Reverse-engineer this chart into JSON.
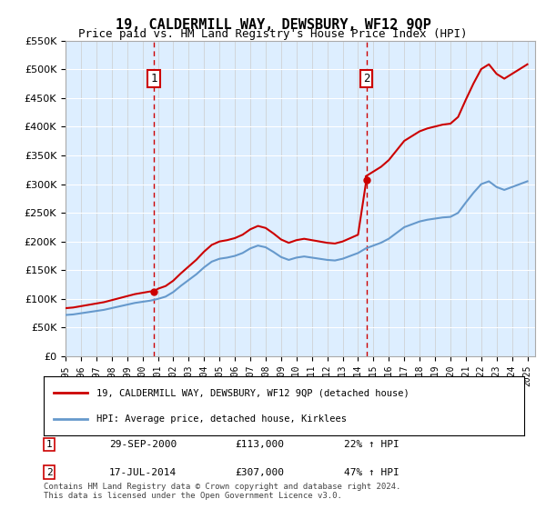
{
  "title": "19, CALDERMILL WAY, DEWSBURY, WF12 9QP",
  "subtitle": "Price paid vs. HM Land Registry's House Price Index (HPI)",
  "legend_line1": "19, CALDERMILL WAY, DEWSBURY, WF12 9QP (detached house)",
  "legend_line2": "HPI: Average price, detached house, Kirklees",
  "sale1_date_label": "29-SEP-2000",
  "sale1_price": 113000,
  "sale1_price_label": "£113,000",
  "sale1_hpi_label": "22% ↑ HPI",
  "sale2_date_label": "17-JUL-2014",
  "sale2_price": 307000,
  "sale2_price_label": "£307,000",
  "sale2_hpi_label": "47% ↑ HPI",
  "sale1_year": 2000.75,
  "sale2_year": 2014.54,
  "footer": "Contains HM Land Registry data © Crown copyright and database right 2024.\nThis data is licensed under the Open Government Licence v3.0.",
  "hpi_color": "#6699cc",
  "price_color": "#cc0000",
  "bg_color": "#ddeeff",
  "ylim_min": 0,
  "ylim_max": 550000,
  "xlim_min": 1995.0,
  "xlim_max": 2025.5
}
